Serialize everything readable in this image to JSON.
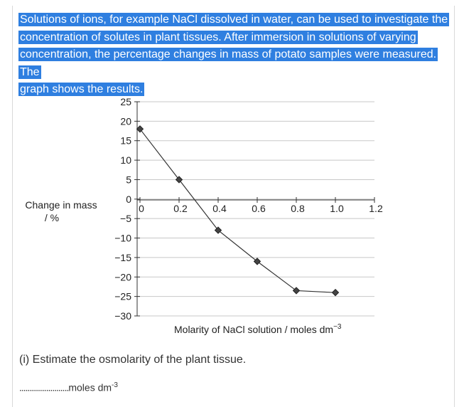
{
  "question": {
    "lines": [
      "Solutions of ions, for example NaCl dissolved in water, can be used to investigate the",
      "concentration of solutes in plant tissues. After immersion in solutions of varying",
      "concentration, the percentage changes in mass of potato samples were measured. The",
      "graph shows the results."
    ],
    "highlight_color": "#2f7fe0"
  },
  "chart_data": {
    "type": "line",
    "title": "",
    "ylabel_line1": "Change in mass",
    "ylabel_line2": "/ %",
    "xlabel": "Molarity of NaCl solution / moles dm",
    "xlabel_sup": "−3",
    "xlim": [
      0,
      1.2
    ],
    "ylim": [
      -30,
      25
    ],
    "x_ticks": [
      "0",
      "0.2",
      "0.4",
      "0.6",
      "0.8",
      "1.0",
      "1.2"
    ],
    "x_tick_values": [
      0,
      0.2,
      0.4,
      0.6,
      0.8,
      1.0,
      1.2
    ],
    "y_ticks": [
      "25",
      "20",
      "15",
      "10",
      "5",
      "0",
      "−5",
      "−10",
      "−15",
      "−20",
      "−25",
      "−30"
    ],
    "y_tick_values": [
      25,
      20,
      15,
      10,
      5,
      0,
      -5,
      -10,
      -15,
      -20,
      -25,
      -30
    ],
    "grid": true,
    "marker": "diamond",
    "series": [
      {
        "x": [
          0,
          0.2,
          0.4,
          0.6,
          0.8,
          1.0
        ],
        "y": [
          18,
          5,
          -8,
          -16,
          -23.5,
          -24
        ]
      }
    ]
  },
  "sub_question": {
    "text": "(i) Estimate the osmolarity of the plant tissue.",
    "answer_dots": "........................",
    "answer_unit": "moles dm",
    "answer_unit_sup": "-3"
  }
}
